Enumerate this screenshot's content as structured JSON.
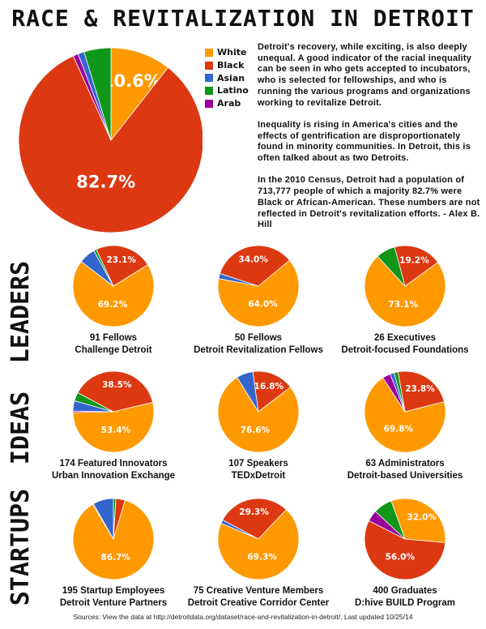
{
  "title": "RACE & REVITALIZATION IN DETROIT",
  "colors": {
    "White": "#ff9900",
    "Black": "#dc3912",
    "Asian": "#3366cc",
    "Latino": "#109618",
    "Arab": "#990099"
  },
  "legend": [
    "White",
    "Black",
    "Asian",
    "Latino",
    "Arab"
  ],
  "blurb": [
    "Detroit's recovery, while exciting, is also deeply unequal. A good indicator of the racial inequality can be seen in who gets accepted to incubators, who is selected for fellowships, and who is running the various programs and organizations working to revitalize Detroit.",
    "Inequality is rising in America's cities and the effects of gentrification are disproportionately found in minority communities. In Detroit, this is often talked about as two Detroits.",
    "In the 2010 Census, Detroit had a population of 713,777 people of which a majority 82.7% were Black or African-American. These numbers are not reflected in Detroit's revitalization efforts. - Alex B. Hill"
  ],
  "sections": [
    "LEADERS",
    "IDEAS",
    "STARTUPS"
  ],
  "sources": "Sources: View the data at http://detroitdata.org/dataset/race-and-revitalization-in-detroit/. Last updated 10/25/14",
  "chart_data": [
    {
      "type": "pie",
      "label": "Detroit 2010 Census",
      "slices": [
        {
          "name": "White",
          "value": 10.6,
          "label": "10.6%"
        },
        {
          "name": "Black",
          "value": 82.7,
          "label": "82.7%"
        },
        {
          "name": "Arab",
          "value": 0.9
        },
        {
          "name": "Asian",
          "value": 1.1
        },
        {
          "name": "Latino",
          "value": 4.7
        }
      ]
    },
    {
      "type": "pie",
      "section": "LEADERS",
      "line1": "91 Fellows",
      "line2": "Challenge Detroit",
      "slices": [
        {
          "name": "Black",
          "value": 23.1,
          "label": "23.1%"
        },
        {
          "name": "White",
          "value": 69.2,
          "label": "69.2%"
        },
        {
          "name": "Asian",
          "value": 6.6
        },
        {
          "name": "Latino",
          "value": 1.1
        }
      ]
    },
    {
      "type": "pie",
      "section": "LEADERS",
      "line1": "50 Fellows",
      "line2": "Detroit Revitalization Fellows",
      "slices": [
        {
          "name": "Black",
          "value": 34.0,
          "label": "34.0%"
        },
        {
          "name": "White",
          "value": 64.0,
          "label": "64.0%"
        },
        {
          "name": "Asian",
          "value": 2.0
        }
      ]
    },
    {
      "type": "pie",
      "section": "LEADERS",
      "line1": "26 Executives",
      "line2": "Detroit-focused Foundations",
      "slices": [
        {
          "name": "Black",
          "value": 19.2,
          "label": "19.2%"
        },
        {
          "name": "White",
          "value": 73.1,
          "label": "73.1%"
        },
        {
          "name": "Latino",
          "value": 7.7
        }
      ]
    },
    {
      "type": "pie",
      "section": "IDEAS",
      "line1": "174 Featured Innovators",
      "line2": "Urban Innovation Exchange",
      "slices": [
        {
          "name": "Black",
          "value": 38.5,
          "label": "38.5%"
        },
        {
          "name": "White",
          "value": 53.4,
          "label": "53.4%"
        },
        {
          "name": "Arab",
          "value": 0.6
        },
        {
          "name": "Asian",
          "value": 4.1
        },
        {
          "name": "Latino",
          "value": 3.4
        }
      ]
    },
    {
      "type": "pie",
      "section": "IDEAS",
      "line1": "107 Speakers",
      "line2": "TEDxDetroit",
      "slices": [
        {
          "name": "Black",
          "value": 16.8,
          "label": "16.8%"
        },
        {
          "name": "White",
          "value": 76.6,
          "label": "76.6%"
        },
        {
          "name": "Asian",
          "value": 6.6
        }
      ]
    },
    {
      "type": "pie",
      "section": "IDEAS",
      "line1": "63 Administrators",
      "line2": "Detroit-based Universities",
      "slices": [
        {
          "name": "Black",
          "value": 23.8,
          "label": "23.8%"
        },
        {
          "name": "White",
          "value": 69.8,
          "label": "69.8%"
        },
        {
          "name": "Arab",
          "value": 3.2
        },
        {
          "name": "Asian",
          "value": 1.6
        },
        {
          "name": "Latino",
          "value": 1.6
        }
      ]
    },
    {
      "type": "pie",
      "section": "STARTUPS",
      "line1": "195 Startup Employees",
      "line2": "Detroit Venture Partners",
      "slices": [
        {
          "name": "Latino",
          "value": 1.0
        },
        {
          "name": "Black",
          "value": 3.7
        },
        {
          "name": "White",
          "value": 86.7,
          "label": "86.7%"
        },
        {
          "name": "Arab",
          "value": 0.4
        },
        {
          "name": "Asian",
          "value": 8.2
        }
      ]
    },
    {
      "type": "pie",
      "section": "STARTUPS",
      "line1": "75 Creative Venture Members",
      "line2": "Detroit Creative Corridor Center",
      "slices": [
        {
          "name": "Black",
          "value": 29.3,
          "label": "29.3%"
        },
        {
          "name": "White",
          "value": 69.3,
          "label": "69.3%"
        },
        {
          "name": "Asian",
          "value": 1.4
        }
      ]
    },
    {
      "type": "pie",
      "section": "STARTUPS",
      "line1": "400 Graduates",
      "line2": "D:hive BUILD Program",
      "slices": [
        {
          "name": "White",
          "value": 32.0,
          "label": "32.0%"
        },
        {
          "name": "Black",
          "value": 56.0,
          "label": "56.0%"
        },
        {
          "name": "Arab",
          "value": 4.5
        },
        {
          "name": "Latino",
          "value": 7.5
        }
      ]
    }
  ]
}
